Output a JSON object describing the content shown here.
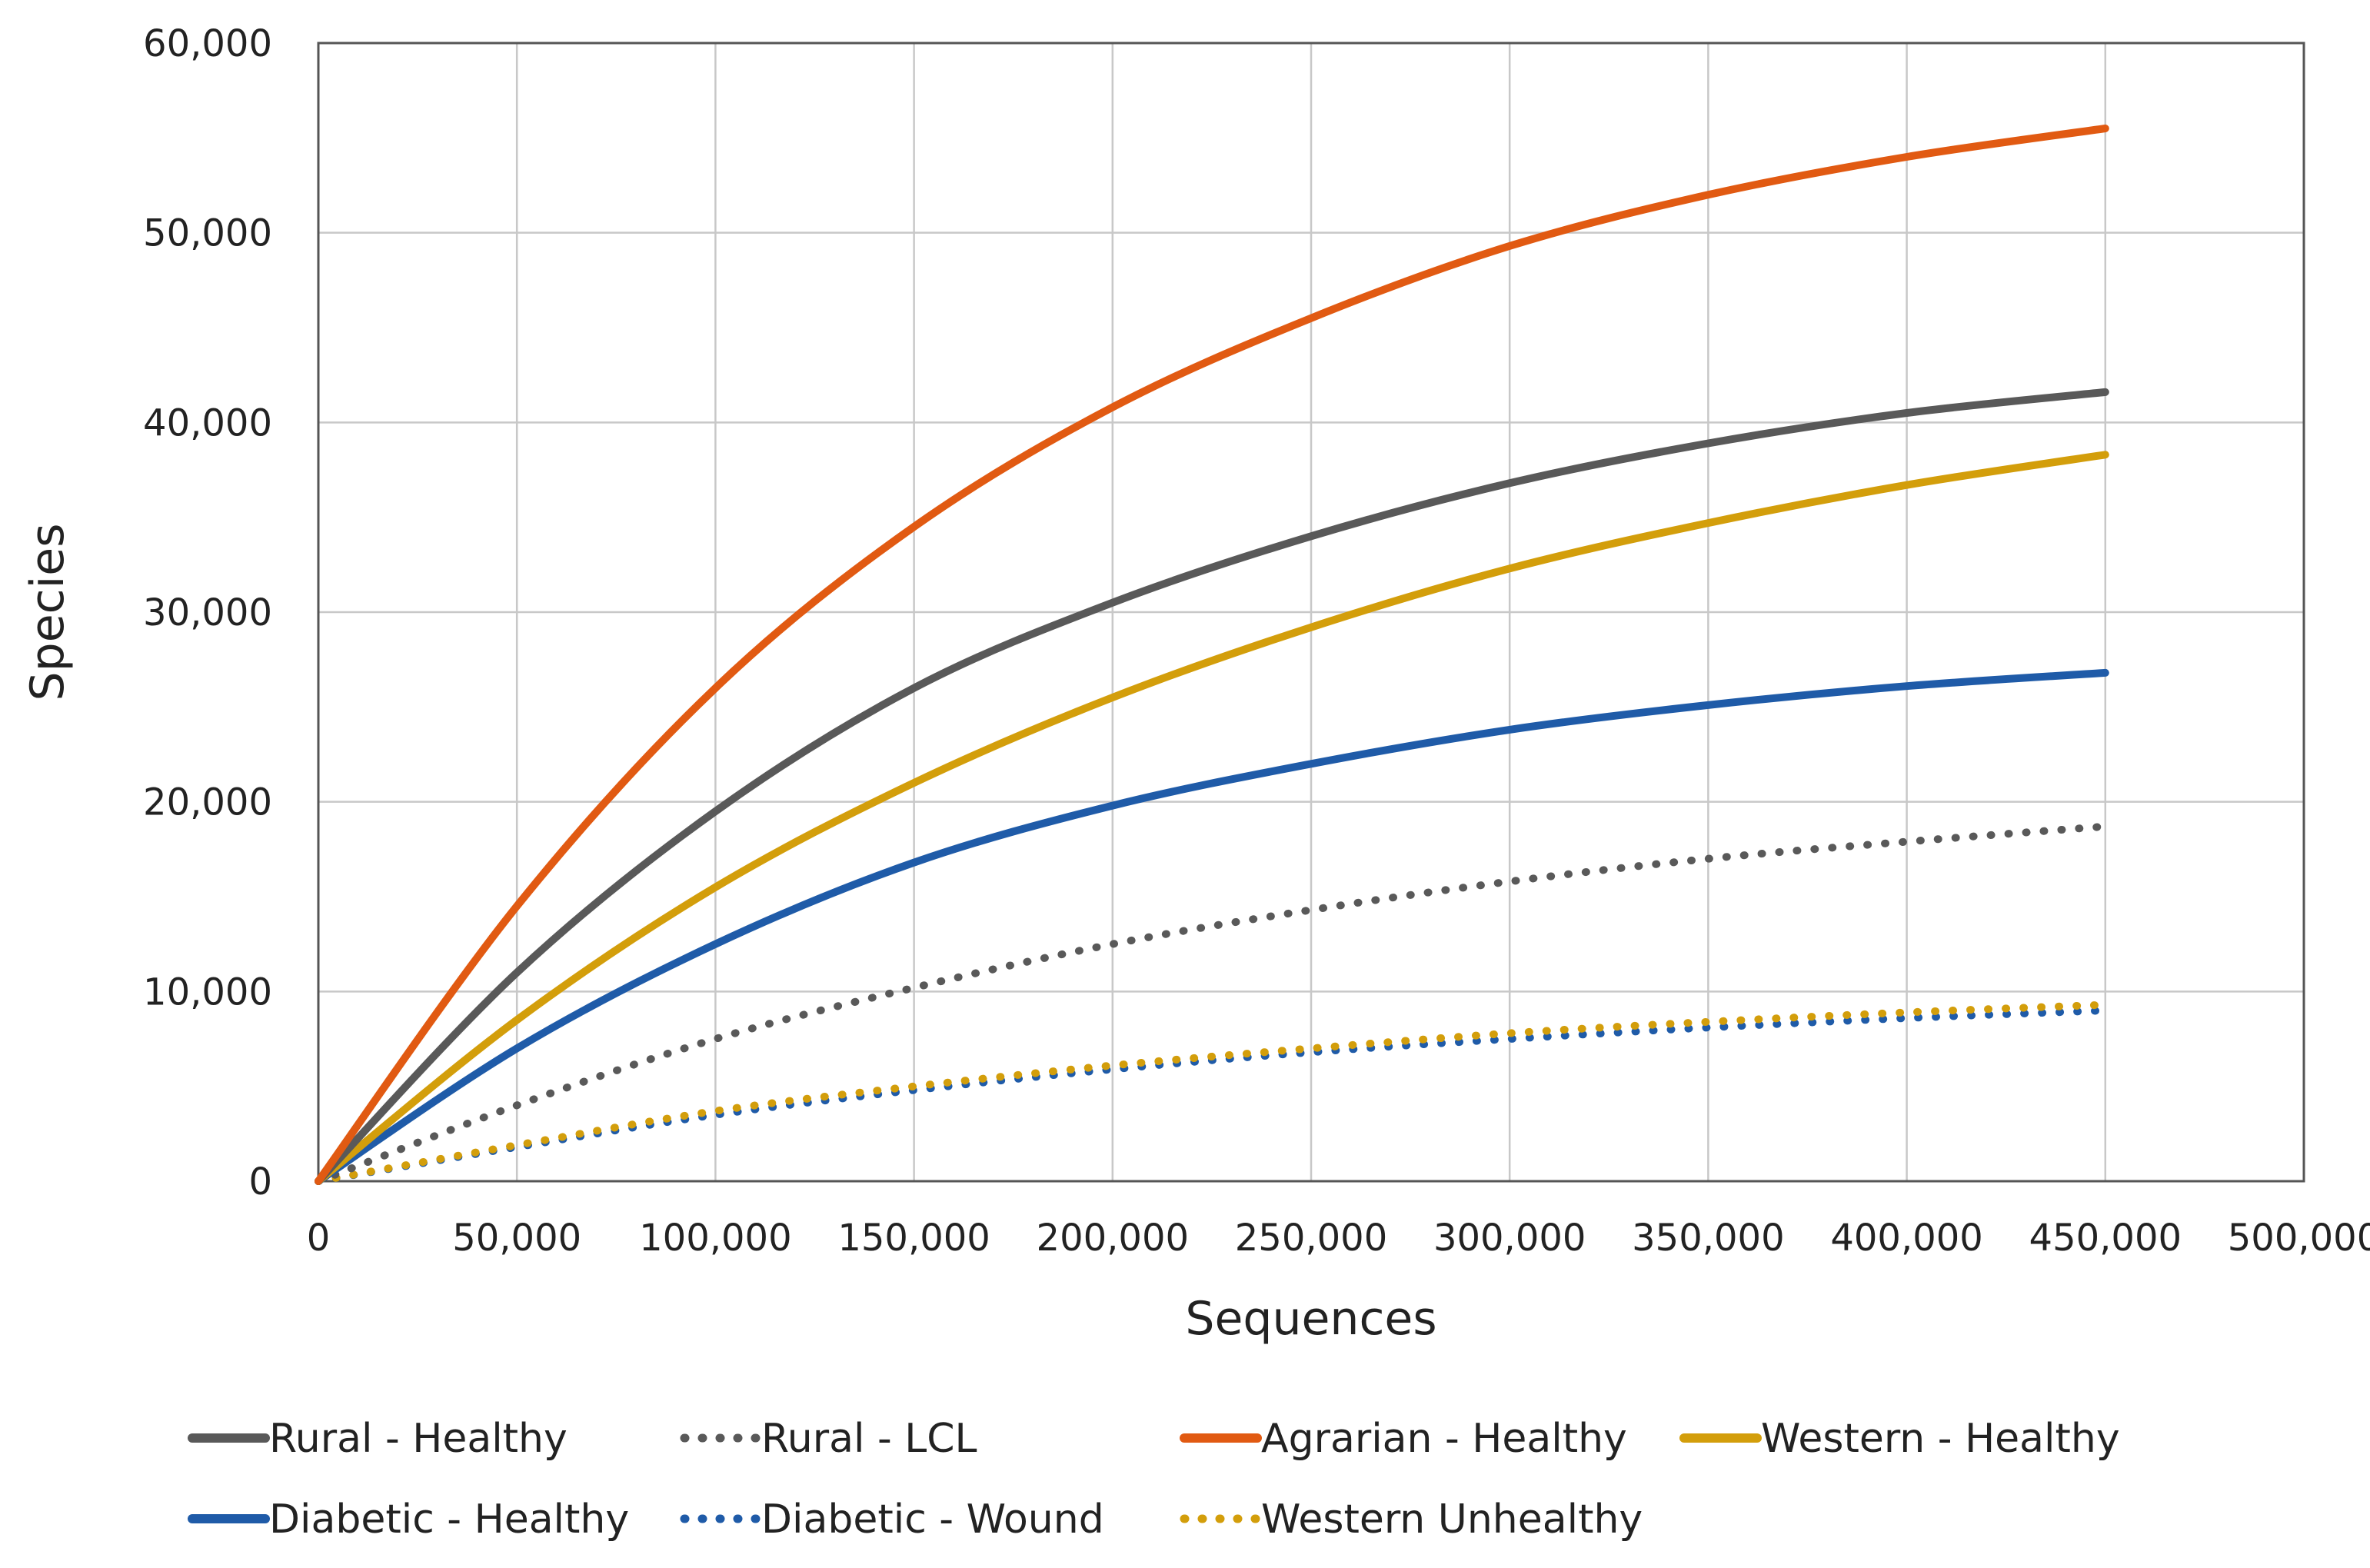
{
  "chart_data": {
    "type": "line",
    "title": "",
    "xlabel": "Sequences",
    "ylabel": "Species",
    "xlim": [
      0,
      500000
    ],
    "ylim": [
      0,
      60000
    ],
    "xticks": [
      0,
      50000,
      100000,
      150000,
      200000,
      250000,
      300000,
      350000,
      400000,
      450000,
      500000
    ],
    "yticks": [
      0,
      10000,
      20000,
      30000,
      40000,
      50000,
      60000
    ],
    "xtick_labels": [
      "0",
      "50,000",
      "100,000",
      "150,000",
      "200,000",
      "250,000",
      "300,000",
      "350,000",
      "400,000",
      "450,000",
      "500,000"
    ],
    "ytick_labels": [
      "0",
      "10,000",
      "20,000",
      "30,000",
      "40,000",
      "50,000",
      "60,000"
    ],
    "grid": true,
    "legend_position": "bottom",
    "x": [
      0,
      50000,
      100000,
      150000,
      200000,
      250000,
      300000,
      350000,
      400000,
      450000
    ],
    "series": [
      {
        "name": "Rural - Healthy",
        "color": "#595959",
        "style": "solid",
        "values": [
          0,
          11000,
          19500,
          26000,
          30500,
          34000,
          36800,
          38900,
          40500,
          41600
        ]
      },
      {
        "name": "Rural - LCL",
        "color": "#595959",
        "style": "dotted",
        "values": [
          0,
          4000,
          7500,
          10200,
          12500,
          14300,
          15800,
          17000,
          17900,
          18700
        ]
      },
      {
        "name": "Agrarian - Healthy",
        "color": "#E15A12",
        "style": "solid",
        "values": [
          0,
          14500,
          26000,
          34500,
          40800,
          45500,
          49300,
          52000,
          54000,
          55500
        ]
      },
      {
        "name": "Western - Healthy",
        "color": "#D39E0B",
        "style": "solid",
        "values": [
          0,
          8500,
          15500,
          21000,
          25500,
          29200,
          32300,
          34700,
          36700,
          38300
        ]
      },
      {
        "name": "Diabetic - Healthy",
        "color": "#1F5BA8",
        "style": "solid",
        "values": [
          0,
          7000,
          12500,
          16800,
          19800,
          22000,
          23800,
          25100,
          26100,
          26800
        ]
      },
      {
        "name": "Diabetic - Wound",
        "color": "#1F5BA8",
        "style": "dotted",
        "values": [
          0,
          1800,
          3500,
          4800,
          5900,
          6800,
          7500,
          8100,
          8600,
          9000
        ]
      },
      {
        "name": "Western Unhealthy",
        "color": "#D39E0B",
        "style": "dotted",
        "values": [
          0,
          1900,
          3700,
          5000,
          6100,
          7000,
          7800,
          8400,
          8900,
          9300
        ]
      }
    ]
  }
}
